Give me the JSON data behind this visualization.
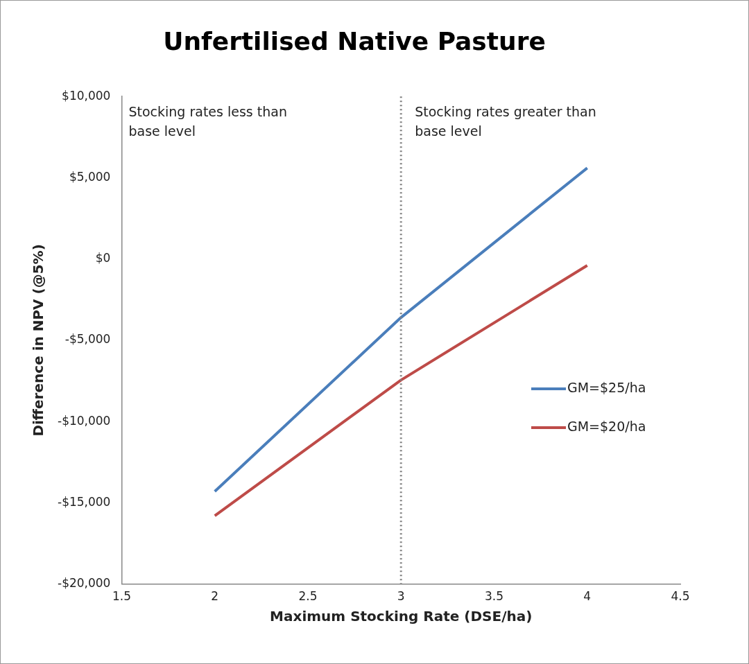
{
  "chart_data": {
    "type": "line",
    "title": "Unfertilised Native Pasture",
    "xlabel": "Maximum Stocking Rate (DSE/ha)",
    "ylabel": "Difference in NPV (@5%)",
    "x": [
      2,
      3,
      4
    ],
    "series": [
      {
        "name": "GM=$25/ha",
        "color": "#4a7ebb",
        "values": [
          -14300,
          -3600,
          5600
        ]
      },
      {
        "name": "GM=$20/ha",
        "color": "#be4b48",
        "values": [
          -15800,
          -7450,
          -400
        ]
      }
    ],
    "xlim": [
      1.5,
      4.5
    ],
    "xticks": [
      1.5,
      2,
      2.5,
      3,
      3.5,
      4,
      4.5
    ],
    "ylim": [
      -20000,
      10000
    ],
    "yticks": [
      {
        "value": -20000,
        "label": "-$20,000"
      },
      {
        "value": -15000,
        "label": "-$15,000"
      },
      {
        "value": -10000,
        "label": "-$10,000"
      },
      {
        "value": -5000,
        "label": "-$5,000"
      },
      {
        "value": 0,
        "label": "$0"
      },
      {
        "value": 5000,
        "label": "$5,000"
      },
      {
        "value": 10000,
        "label": "$10,000"
      }
    ],
    "ref_lines": [
      {
        "axis": "x",
        "value": 3,
        "color": "#808080",
        "line_style": "dotted"
      }
    ],
    "annotations": [
      "Stocking rates less than\nbase level",
      "Stocking rates greater than\nbase level"
    ],
    "legend": "right",
    "grid": false,
    "marker": "none",
    "line_style": "solid"
  }
}
